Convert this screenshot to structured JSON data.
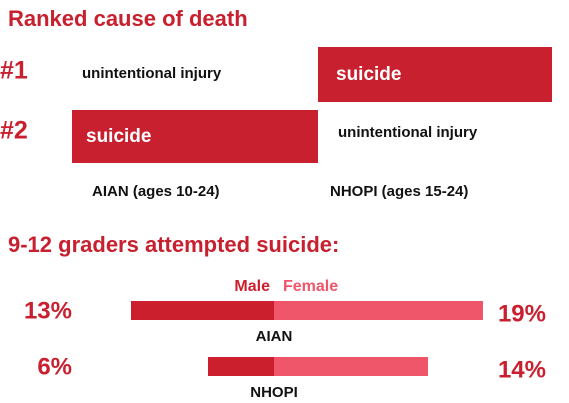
{
  "ranking": {
    "title": "Ranked cause of death",
    "ranks": [
      "#1",
      "#2"
    ],
    "groups": [
      {
        "name": "AIAN (ages 10-24)",
        "causes": [
          "unintentional injury",
          "suicide"
        ]
      },
      {
        "name": "NHOPI (ages 15-24)",
        "causes": [
          "suicide",
          "unintentional injury"
        ]
      }
    ]
  },
  "chart_data": {
    "type": "bar",
    "title": "9-12 graders attempted suicide:",
    "categories": [
      "AIAN",
      "NHOPI"
    ],
    "series": [
      {
        "name": "Male",
        "color": "#cc1f2d",
        "values": [
          13,
          6
        ],
        "value_labels": [
          "13%",
          "6%"
        ]
      },
      {
        "name": "Female",
        "color": "#f0566a",
        "values": [
          19,
          14
        ],
        "value_labels": [
          "19%",
          "14%"
        ]
      }
    ]
  }
}
